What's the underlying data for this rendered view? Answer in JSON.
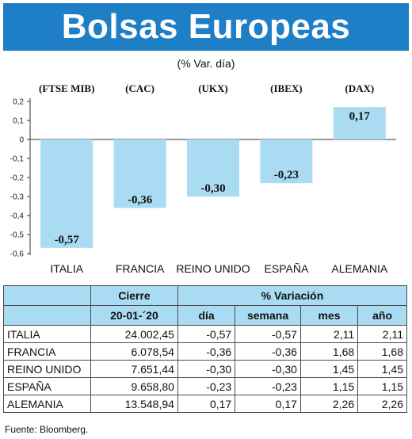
{
  "title": "Bolsas Europeas",
  "subtitle": "(% Var. día)",
  "chart_data": {
    "type": "bar",
    "indices": [
      "(FTSE MIB)",
      "(CAC)",
      "(UKX)",
      "(IBEX)",
      "(DAX)"
    ],
    "categories": [
      "ITALIA",
      "FRANCIA",
      "REINO UNIDO",
      "ESPAÑA",
      "ALEMANIA"
    ],
    "values": [
      -0.57,
      -0.36,
      -0.3,
      -0.23,
      0.17
    ],
    "value_labels": [
      "-0,57",
      "-0,36",
      "-0,30",
      "-0,23",
      "0,17"
    ],
    "ylim": [
      -0.6,
      0.2
    ],
    "yticks": [
      0.2,
      0.1,
      0,
      -0.1,
      -0.2,
      -0.3,
      -0.4,
      -0.5,
      -0.6
    ],
    "ytick_labels": [
      "0,2",
      "0,1",
      "0",
      "-0,1",
      "-0,2",
      "-0,3",
      "-0,4",
      "-0,5",
      "-0,6"
    ],
    "bar_color": "#a9dcf2",
    "grid": false
  },
  "table": {
    "header_cierre": "Cierre",
    "header_variacion": "% Variación",
    "header_date": "20-01-´20",
    "header_dia": "día",
    "header_semana": "semana",
    "header_mes": "mes",
    "header_ano": "año",
    "rows": [
      {
        "name": "ITALIA",
        "cierre": "24.002,45",
        "dia": "-0,57",
        "semana": "-0,57",
        "mes": "2,11",
        "ano": "2,11"
      },
      {
        "name": "FRANCIA",
        "cierre": "6.078,54",
        "dia": "-0,36",
        "semana": "-0,36",
        "mes": "1,68",
        "ano": "1,68"
      },
      {
        "name": "REINO UNIDO",
        "cierre": "7.651,44",
        "dia": "-0,30",
        "semana": "-0,30",
        "mes": "1,45",
        "ano": "1,45"
      },
      {
        "name": "ESPAÑA",
        "cierre": "9.658,80",
        "dia": "-0,23",
        "semana": "-0,23",
        "mes": "1,15",
        "ano": "1,15"
      },
      {
        "name": "ALEMANIA",
        "cierre": "13.548,94",
        "dia": "0,17",
        "semana": "0,17",
        "mes": "2,26",
        "ano": "2,26"
      }
    ]
  },
  "source": "Fuente: Bloomberg."
}
